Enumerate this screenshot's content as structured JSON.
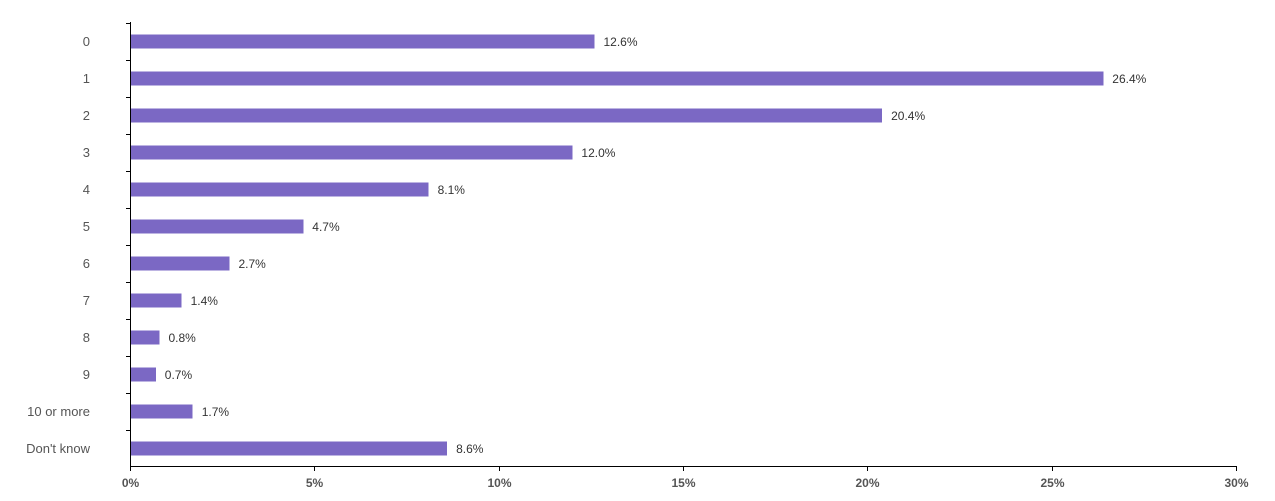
{
  "chart_data": {
    "type": "bar",
    "orientation": "horizontal",
    "categories": [
      "0",
      "1",
      "2",
      "3",
      "4",
      "5",
      "6",
      "7",
      "8",
      "9",
      "10 or more",
      "Don't know"
    ],
    "values": [
      12.6,
      26.4,
      20.4,
      12.0,
      8.1,
      4.7,
      2.7,
      1.4,
      0.8,
      0.7,
      1.7,
      8.6
    ],
    "value_labels": [
      "12.6%",
      "26.4%",
      "20.4%",
      "12.0%",
      "8.1%",
      "4.7%",
      "2.7%",
      "1.4%",
      "0.8%",
      "0.7%",
      "1.7%",
      "8.6%"
    ],
    "x_ticks": [
      "0%",
      "5%",
      "10%",
      "15%",
      "20%",
      "25%",
      "30%"
    ],
    "xlim": [
      0,
      30
    ],
    "title": "",
    "xlabel": "",
    "ylabel": "",
    "grid": false,
    "bar_color": "#7b68c4"
  }
}
